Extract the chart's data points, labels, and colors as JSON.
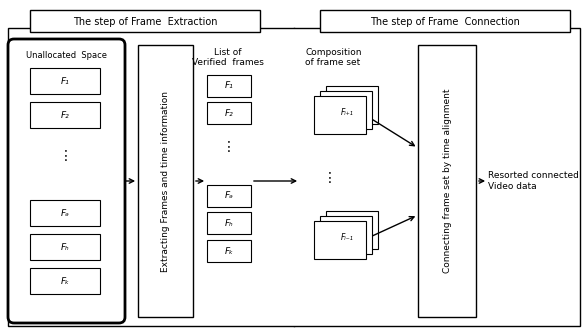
{
  "title_left": "The step of Frame  Extraction",
  "title_right": "The step of Frame  Connection",
  "unallocated_label": "Unallocated  Space",
  "extract_label": "Extracting Frames and time information",
  "list_label": "List of\nVerified  frames",
  "composition_label": "Composition\nof frame set",
  "connecting_label": "Connecting frame set by time alignment",
  "resorted_label": "Resorted connected\nVideo data",
  "bg_color": "#ffffff"
}
